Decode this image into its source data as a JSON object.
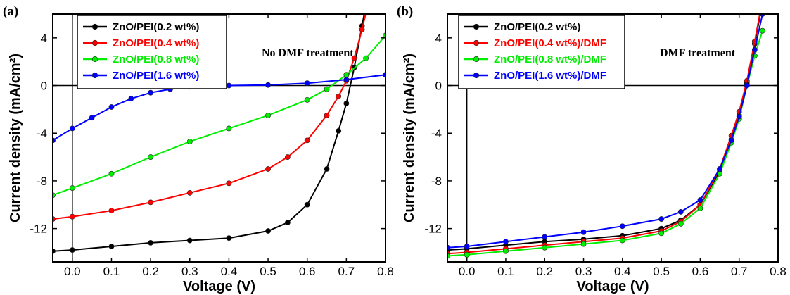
{
  "chart_data": [
    {
      "type": "line",
      "panel_label": "(a)",
      "annotation": "No DMF treatment",
      "xlabel": "Voltage (V)",
      "ylabel": "Current density (mA/cm²)",
      "xlim": [
        -0.05,
        0.8
      ],
      "ylim": [
        -14.8,
        6
      ],
      "xticks": [
        0.0,
        0.1,
        0.2,
        0.3,
        0.4,
        0.5,
        0.6,
        0.7,
        0.8
      ],
      "xtick_labels": [
        "0.0",
        "0.1",
        "0.2",
        "0.3",
        "0.4",
        "0.5",
        "0.6",
        "0.7",
        "0.8"
      ],
      "yticks": [
        4,
        0,
        -4,
        -8,
        -12
      ],
      "ytick_labels": [
        "4",
        "0",
        "-4",
        "-8",
        "-12"
      ],
      "legend_position": "top-left",
      "series": [
        {
          "name": "ZnO/PEI(0.2 wt%)",
          "color": "#000000",
          "x": [
            -0.05,
            0.0,
            0.1,
            0.2,
            0.3,
            0.4,
            0.5,
            0.55,
            0.6,
            0.65,
            0.68,
            0.7,
            0.72,
            0.74,
            0.76
          ],
          "y": [
            -13.9,
            -13.8,
            -13.5,
            -13.2,
            -13.0,
            -12.8,
            -12.2,
            -11.5,
            -10.0,
            -7.0,
            -3.8,
            -1.5,
            1.5,
            5.0,
            8.5
          ]
        },
        {
          "name": "ZnO/PEI(0.4 wt%)",
          "color": "#ff0000",
          "x": [
            -0.05,
            0.0,
            0.1,
            0.2,
            0.3,
            0.4,
            0.5,
            0.55,
            0.6,
            0.65,
            0.68,
            0.7,
            0.72,
            0.74,
            0.76
          ],
          "y": [
            -11.2,
            -11.0,
            -10.5,
            -9.8,
            -9.0,
            -8.2,
            -7.0,
            -6.0,
            -4.6,
            -2.5,
            -0.9,
            0.4,
            2.3,
            4.7,
            7.5
          ]
        },
        {
          "name": "ZnO/PEI(0.8 wt%)",
          "color": "#00ee00",
          "x": [
            -0.05,
            0.0,
            0.1,
            0.2,
            0.3,
            0.4,
            0.5,
            0.6,
            0.65,
            0.7,
            0.75,
            0.8
          ],
          "y": [
            -9.2,
            -8.6,
            -7.4,
            -6.0,
            -4.7,
            -3.6,
            -2.5,
            -1.2,
            -0.3,
            0.9,
            2.3,
            4.2
          ]
        },
        {
          "name": "ZnO/PEI(1.6 wt%)",
          "color": "#0000ff",
          "x": [
            -0.05,
            0.0,
            0.05,
            0.1,
            0.15,
            0.2,
            0.25,
            0.3,
            0.4,
            0.5,
            0.6,
            0.7,
            0.8
          ],
          "y": [
            -4.6,
            -3.6,
            -2.7,
            -1.8,
            -1.1,
            -0.6,
            -0.3,
            -0.1,
            0.0,
            0.05,
            0.2,
            0.5,
            0.9
          ]
        }
      ]
    },
    {
      "type": "line",
      "panel_label": "(b)",
      "annotation": "DMF treatment",
      "xlabel": "Voltage (V)",
      "ylabel": "Current density (mA/cm²)",
      "xlim": [
        -0.05,
        0.8
      ],
      "ylim": [
        -14.8,
        6
      ],
      "xticks": [
        0.0,
        0.1,
        0.2,
        0.3,
        0.4,
        0.5,
        0.6,
        0.7,
        0.8
      ],
      "xtick_labels": [
        "0.0",
        "0.1",
        "0.2",
        "0.3",
        "0.4",
        "0.5",
        "0.6",
        "0.7",
        "0.8"
      ],
      "yticks": [
        4,
        0,
        -4,
        -8,
        -12
      ],
      "ytick_labels": [
        "4",
        "0",
        "-4",
        "-8",
        "-12"
      ],
      "legend_position": "top-left",
      "series": [
        {
          "name": "ZnO/PEI(0.2 wt%)",
          "color": "#000000",
          "x": [
            -0.05,
            0.0,
            0.1,
            0.2,
            0.3,
            0.4,
            0.5,
            0.55,
            0.6,
            0.65,
            0.68,
            0.7,
            0.72,
            0.74,
            0.76
          ],
          "y": [
            -13.8,
            -13.7,
            -13.4,
            -13.1,
            -12.9,
            -12.6,
            -12.0,
            -11.3,
            -10.0,
            -7.2,
            -4.5,
            -2.5,
            0.2,
            3.5,
            7.0
          ]
        },
        {
          "name": "ZnO/PEI(0.4 wt%)/DMF",
          "color": "#ff0000",
          "x": [
            -0.05,
            0.0,
            0.1,
            0.2,
            0.3,
            0.4,
            0.5,
            0.55,
            0.6,
            0.65,
            0.68,
            0.7,
            0.72,
            0.74,
            0.76
          ],
          "y": [
            -14.1,
            -14.0,
            -13.7,
            -13.4,
            -13.1,
            -12.8,
            -12.2,
            -11.4,
            -10.0,
            -7.0,
            -4.2,
            -2.2,
            0.4,
            3.7,
            7.2
          ]
        },
        {
          "name": "ZnO/PEI(0.8 wt%)/DMF",
          "color": "#00ee00",
          "x": [
            -0.05,
            0.0,
            0.1,
            0.2,
            0.3,
            0.4,
            0.5,
            0.55,
            0.6,
            0.65,
            0.68,
            0.7,
            0.72,
            0.74,
            0.76
          ],
          "y": [
            -14.3,
            -14.2,
            -13.9,
            -13.6,
            -13.3,
            -13.0,
            -12.4,
            -11.6,
            -10.3,
            -7.4,
            -4.8,
            -2.8,
            0.0,
            2.5,
            4.6
          ]
        },
        {
          "name": "ZnO/PEI(1.6 wt%)/DMF",
          "color": "#0000ff",
          "x": [
            -0.05,
            0.0,
            0.1,
            0.2,
            0.3,
            0.4,
            0.5,
            0.55,
            0.6,
            0.65,
            0.68,
            0.7,
            0.72,
            0.74,
            0.76
          ],
          "y": [
            -13.6,
            -13.5,
            -13.1,
            -12.7,
            -12.3,
            -11.8,
            -11.2,
            -10.6,
            -9.6,
            -7.0,
            -4.6,
            -2.6,
            0.0,
            3.0,
            6.0
          ]
        }
      ]
    }
  ]
}
